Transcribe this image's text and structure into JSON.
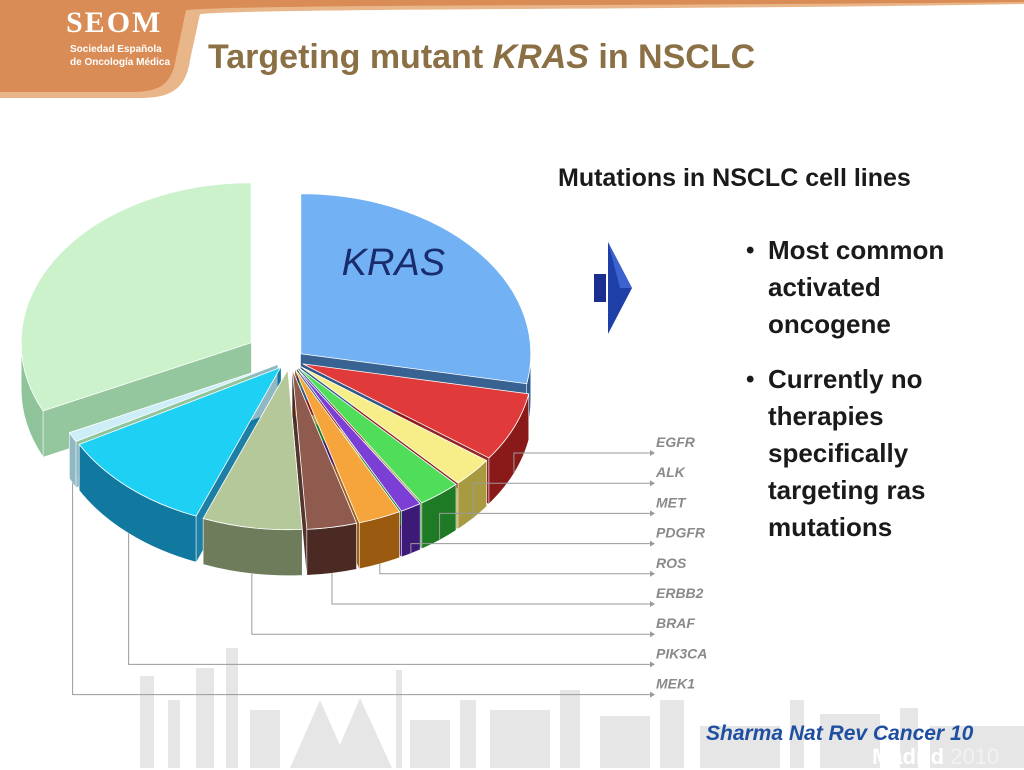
{
  "header": {
    "logo_title": "SEOM",
    "logo_subtitle_line1": "Sociedad Española",
    "logo_subtitle_line2": "de Oncología Médica",
    "title_prefix": "Targeting mutant ",
    "title_italic": "KRAS",
    "title_suffix": " in NSCLC"
  },
  "section_heading": "Mutations in NSCLC cell lines",
  "bullets": [
    "Most common activated oncogene",
    "Currently no therapies specifically targeting ras mutations"
  ],
  "citation": "Sharma Nat Rev Cancer 10",
  "footer_logo": {
    "city": "Madrid",
    "year": "2010"
  },
  "chart_data": {
    "type": "pie",
    "title": "Mutations in NSCLC cell lines",
    "slices": [
      {
        "label": "KRAS",
        "value": 28,
        "color": "#72b2f4",
        "side_color": "#2d5a8c"
      },
      {
        "label": "EGFR",
        "value": 7,
        "color": "#e03a3a",
        "side_color": "#8a1a1a"
      },
      {
        "label": "ALK",
        "value": 3,
        "color": "#f7ee8a",
        "side_color": "#a89a40"
      },
      {
        "label": "MET",
        "value": 3,
        "color": "#4fdd5a",
        "side_color": "#1f7a26"
      },
      {
        "label": "PDGFR",
        "value": 1.5,
        "color": "#7b3fd6",
        "side_color": "#3e1a78"
      },
      {
        "label": "ROS",
        "value": 3,
        "color": "#f5a53c",
        "side_color": "#9a5a10"
      },
      {
        "label": "ERBB2",
        "value": 3.5,
        "color": "#8f5b4f",
        "side_color": "#4a2a23"
      },
      {
        "label": "BRAF",
        "value": 7,
        "color": "#b4c89a",
        "side_color": "#6f7c5c"
      },
      {
        "label": "PIK3CA",
        "value": 11,
        "color": "#1fd0f5",
        "side_color": "#1178a0"
      },
      {
        "label": "MEK1",
        "value": 1,
        "color": "#cdeef6",
        "side_color": "#8fb8c4"
      },
      {
        "label": "",
        "value": 32,
        "color": "#ccf2cc",
        "side_color": "#8fc49a"
      }
    ],
    "callout_label": "KRAS",
    "legend_labels": [
      "EGFR",
      "ALK",
      "MET",
      "PDGFR",
      "ROS",
      "ERBB2",
      "BRAF",
      "PIK3CA",
      "MEK1"
    ]
  }
}
